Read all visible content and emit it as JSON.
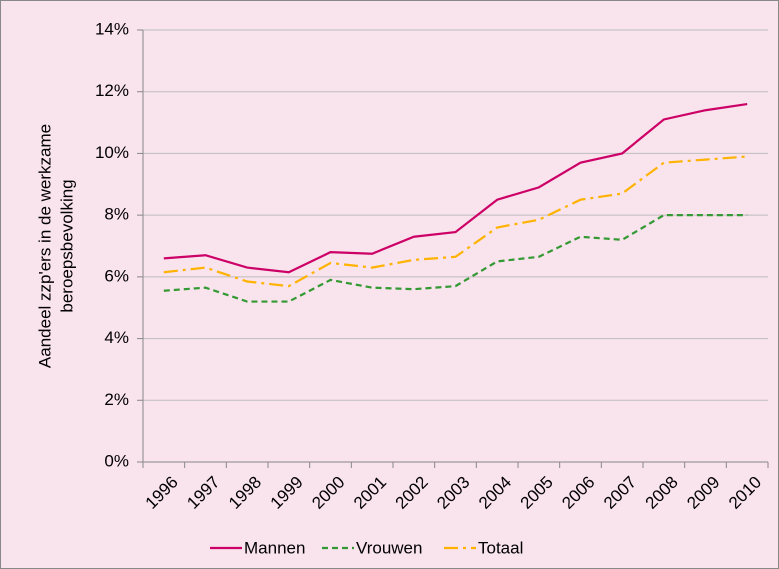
{
  "chart_data": {
    "type": "line",
    "ylabel": [
      "Aandeel zzp'ers in de werkzame",
      "beroepsbevolking"
    ],
    "categories": [
      "1996",
      "1997",
      "1998",
      "1999",
      "2000",
      "2001",
      "2002",
      "2003",
      "2004",
      "2005",
      "2006",
      "2007",
      "2008",
      "2009",
      "2010"
    ],
    "series": [
      {
        "name": "Mannen",
        "color": "#cc0066",
        "dash": "solid",
        "values": [
          6.6,
          6.7,
          6.3,
          6.15,
          6.8,
          6.75,
          7.3,
          7.45,
          8.5,
          8.9,
          9.7,
          10.0,
          11.1,
          11.4,
          11.6
        ]
      },
      {
        "name": "Vrouwen",
        "color": "#339933",
        "dash": "dashed",
        "values": [
          5.55,
          5.65,
          5.2,
          5.2,
          5.9,
          5.65,
          5.6,
          5.7,
          6.5,
          6.65,
          7.3,
          7.2,
          8.0,
          8.0,
          8.0
        ]
      },
      {
        "name": "Totaal",
        "color": "#ffb300",
        "dash": "dashdot",
        "values": [
          6.15,
          6.3,
          5.85,
          5.7,
          6.45,
          6.3,
          6.55,
          6.65,
          7.6,
          7.85,
          8.5,
          8.7,
          9.7,
          9.8,
          9.9
        ]
      }
    ],
    "ylim": [
      0,
      14
    ],
    "yticks": [
      {
        "value": 0,
        "label": "0%"
      },
      {
        "value": 2,
        "label": "2%"
      },
      {
        "value": 4,
        "label": "4%"
      },
      {
        "value": 6,
        "label": "6%"
      },
      {
        "value": 8,
        "label": "8%"
      },
      {
        "value": 10,
        "label": "10%"
      },
      {
        "value": 12,
        "label": "12%"
      },
      {
        "value": 14,
        "label": "14%"
      }
    ],
    "grid": true,
    "legend": "bottom"
  }
}
